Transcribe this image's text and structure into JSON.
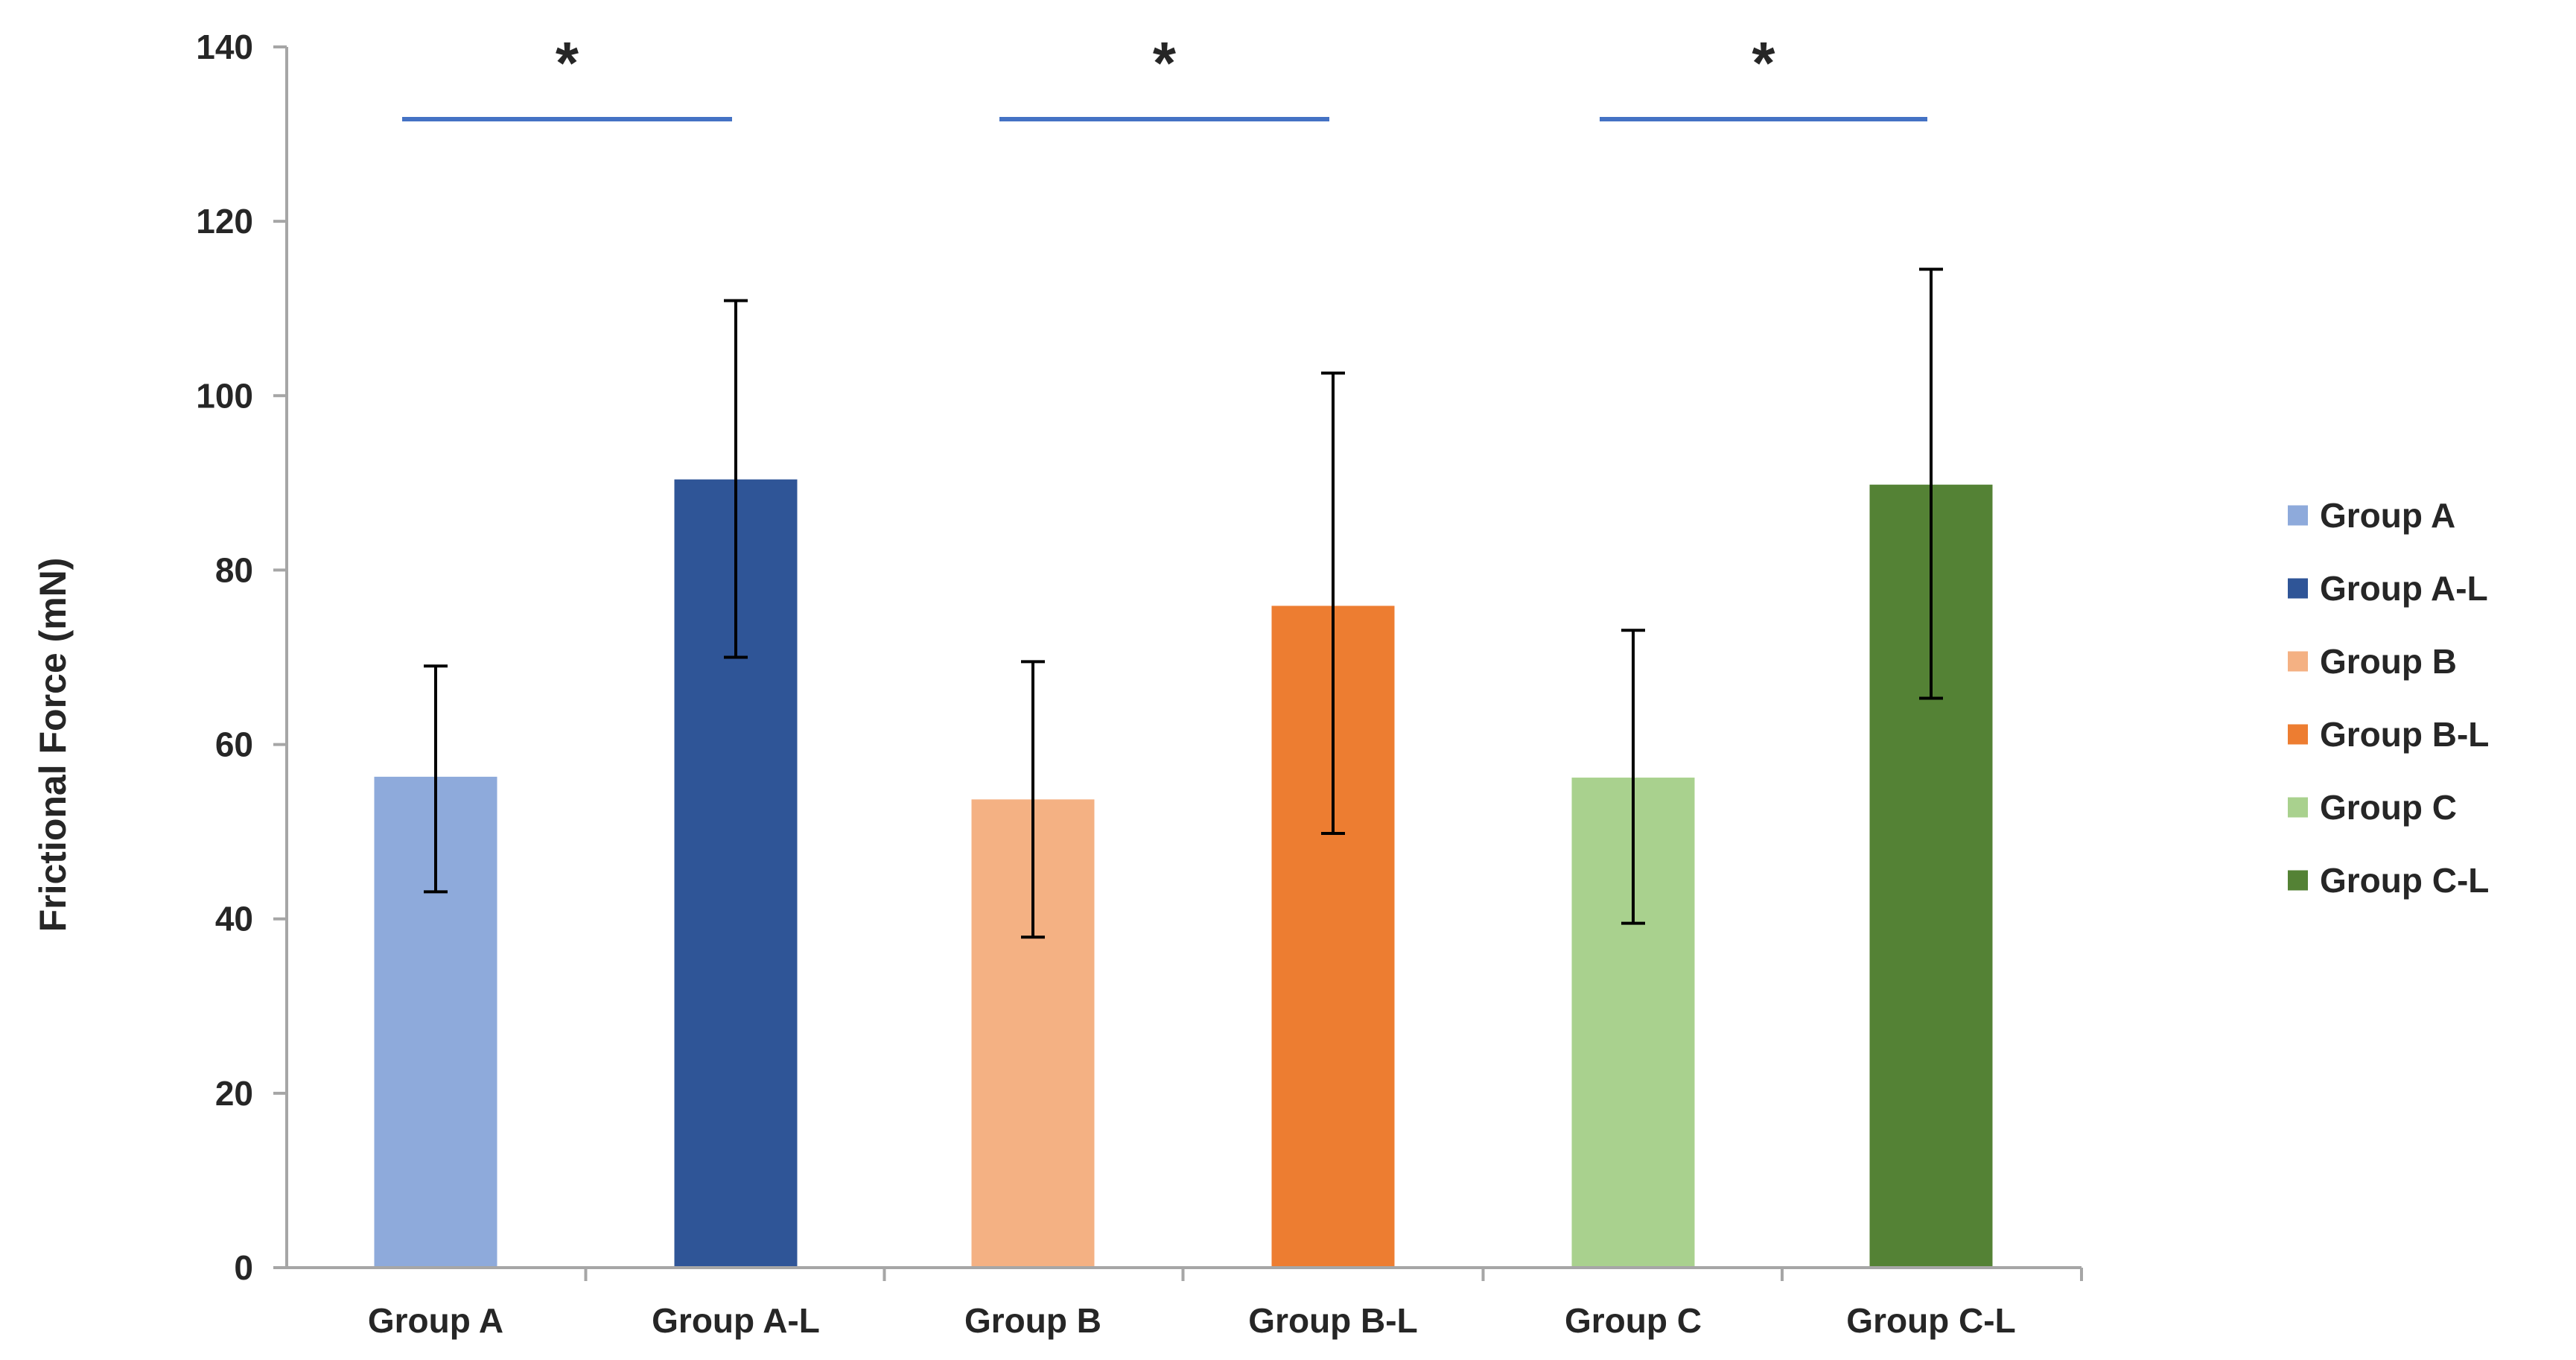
{
  "chart_data": {
    "type": "bar",
    "title": "",
    "xlabel": "",
    "ylabel": "Frictional Force (mN)",
    "ylim": [
      0,
      140
    ],
    "yticks": [
      0,
      20,
      40,
      60,
      80,
      100,
      120,
      140
    ],
    "grid": false,
    "legend_position": "right",
    "categories": [
      "Group A",
      "Group A-L",
      "Group B",
      "Group B-L",
      "Group C",
      "Group C-L"
    ],
    "values": [
      56.3,
      90.4,
      53.7,
      75.9,
      56.2,
      89.8
    ],
    "error_low": [
      43.1,
      70.0,
      37.9,
      49.8,
      39.5,
      65.3
    ],
    "error_high": [
      69.0,
      110.9,
      69.5,
      102.6,
      73.1,
      114.5
    ],
    "colors": [
      "#8eaadb",
      "#2f5597",
      "#f4b183",
      "#ed7d31",
      "#a9d18e",
      "#548235"
    ],
    "legend": [
      "Group A",
      "Group A-L",
      "Group B",
      "Group B-L",
      "Group C",
      "Group C-L"
    ],
    "significance": [
      {
        "from": "Group A",
        "to": "Group A-L",
        "label": "*"
      },
      {
        "from": "Group B",
        "to": "Group B-L",
        "label": "*"
      },
      {
        "from": "Group C",
        "to": "Group C-L",
        "label": "*"
      }
    ],
    "significance_color": "#4472c4"
  }
}
